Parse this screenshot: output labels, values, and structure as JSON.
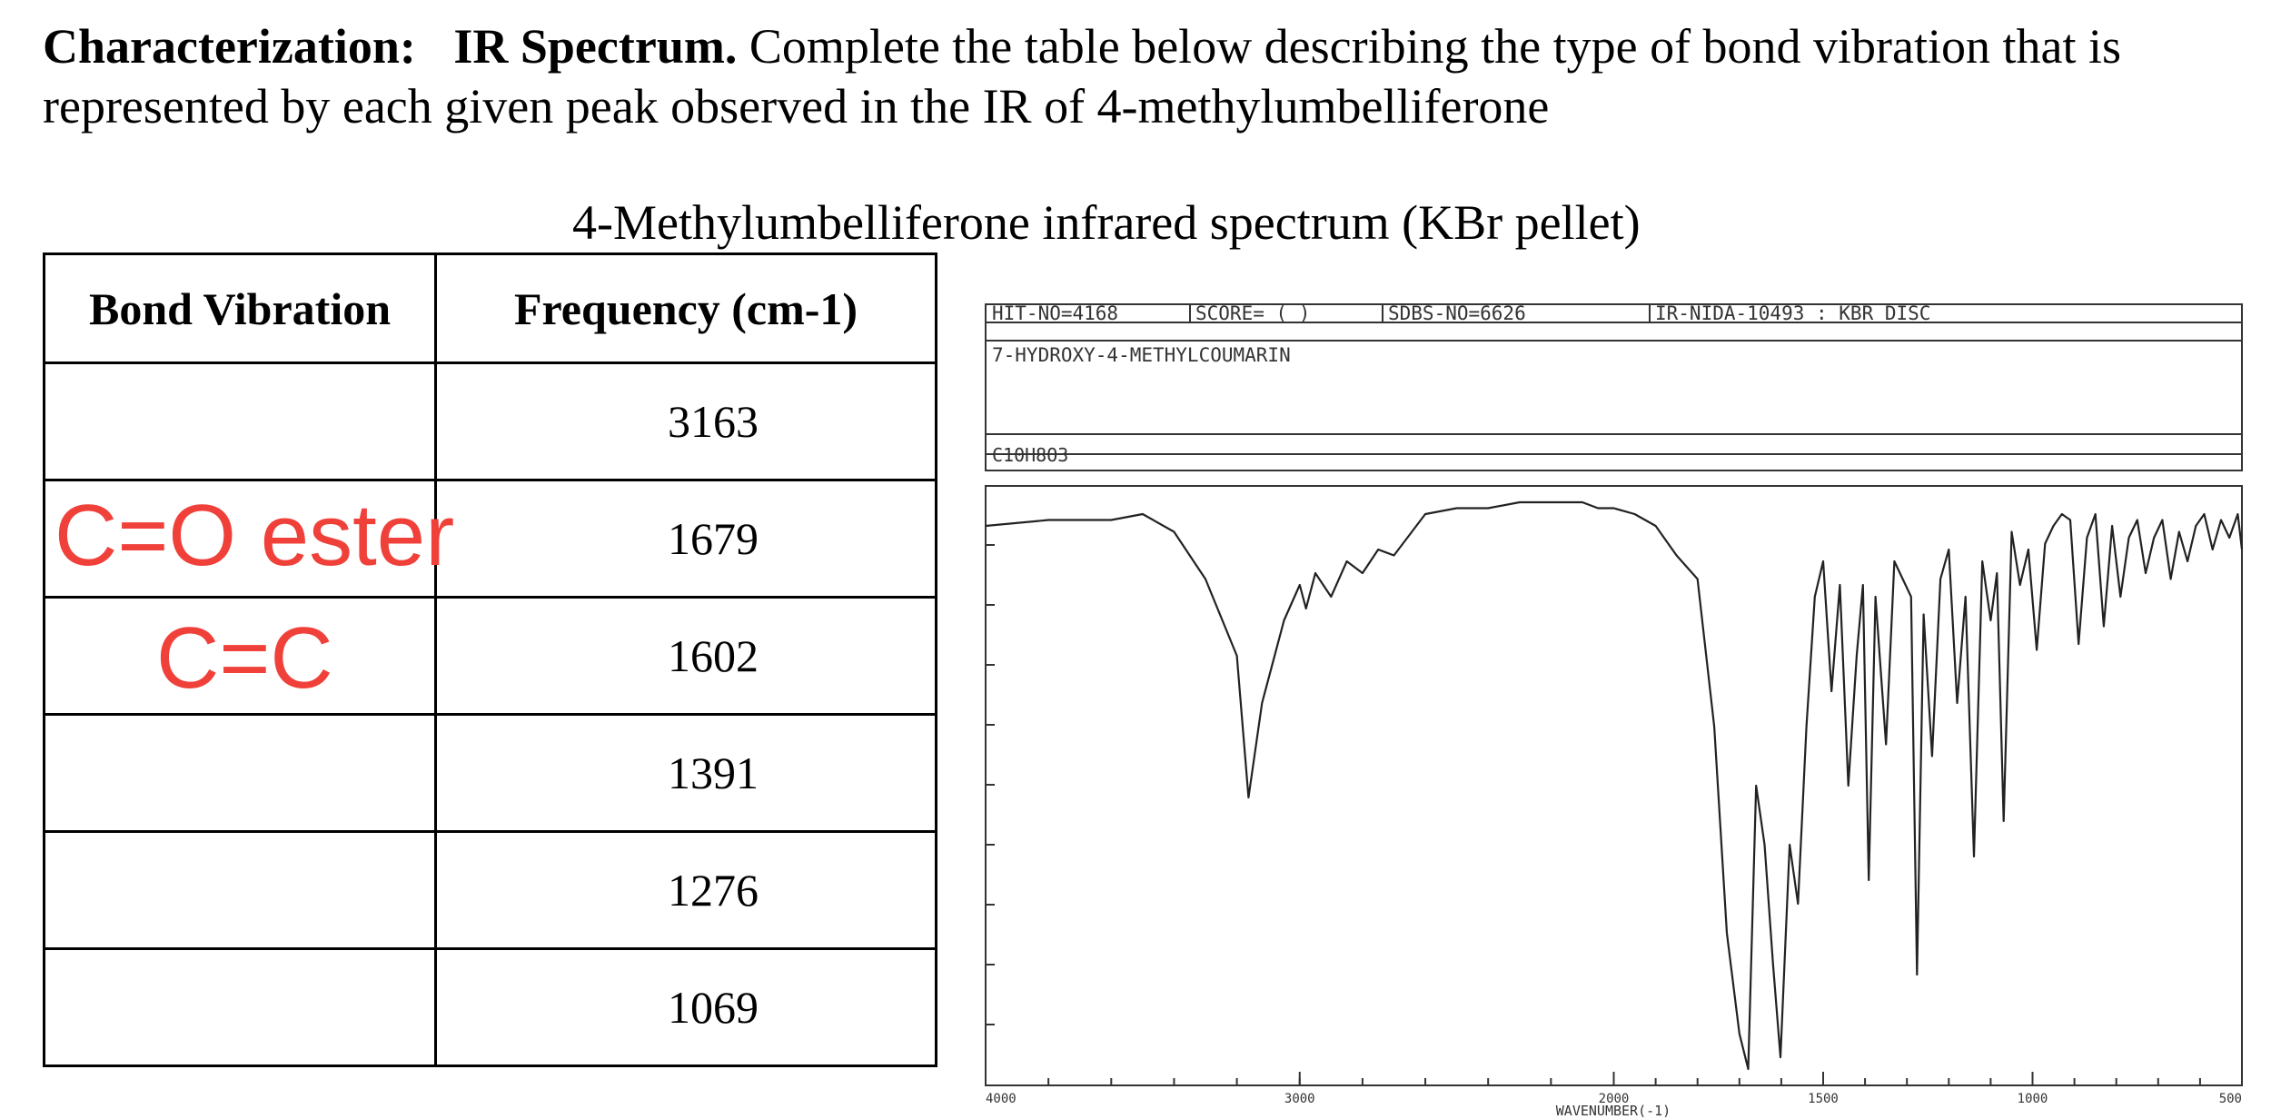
{
  "intro": {
    "label_characterization": "Characterization:",
    "label_ir": "IR Spectrum.",
    "text": "Complete the table below describing the type of bond vibration that is represented  by each given peak observed in the IR of 4-methylumbelliferone"
  },
  "spectrum_caption": "4-Methylumbelliferone infrared spectrum (KBr pellet)",
  "table": {
    "headers": [
      "Bond Vibration",
      "Frequency (cm-1)"
    ],
    "rows": [
      {
        "bond": "",
        "frequency": "3163"
      },
      {
        "bond": "",
        "frequency": "1679"
      },
      {
        "bond": "",
        "frequency": "1602"
      },
      {
        "bond": "",
        "frequency": "1391"
      },
      {
        "bond": "",
        "frequency": "1276"
      },
      {
        "bond": "",
        "frequency": "1069"
      }
    ]
  },
  "annotations": {
    "row2": "C=O ester",
    "row3": "C=C",
    "color": "#f0403a"
  },
  "spectrum": {
    "hit_no": "HIT-NO=4168",
    "score": "SCORE=  (   )",
    "sdbs_no": "SDBS-NO=6626",
    "ir_nida": "IR-NIDA-10493 : KBR DISC",
    "compound": "7-HYDROXY-4-METHYLCOUMARIN",
    "formula": "C10H8O3",
    "x_ticks": [
      "4000",
      "3000",
      "2000",
      "1500",
      "1000",
      "500"
    ],
    "x_label": "WAVENUMBER(-1)"
  },
  "chart_data": {
    "type": "line",
    "title": "",
    "xlabel": "WAVENUMBER(-1)",
    "ylabel": "",
    "x_scale": "reversed, two-segment (4000-2000 and 2000-500 each span half the axis)",
    "xlim": [
      4000,
      500
    ],
    "ylim": [
      0,
      100
    ],
    "series": [
      {
        "x": [
          4000,
          3800,
          3600,
          3500,
          3400,
          3300,
          3200,
          3163,
          3120,
          3050,
          3000,
          2980,
          2950,
          2900,
          2850,
          2800,
          2750,
          2700,
          2600,
          2500,
          2400,
          2300,
          2200,
          2100,
          2050,
          2000,
          1950,
          1900,
          1850,
          1800,
          1760,
          1730,
          1700,
          1679,
          1660,
          1640,
          1620,
          1602,
          1580,
          1560,
          1540,
          1520,
          1500,
          1480,
          1460,
          1440,
          1420,
          1405,
          1391,
          1375,
          1350,
          1330,
          1310,
          1290,
          1276,
          1260,
          1240,
          1220,
          1200,
          1180,
          1160,
          1140,
          1120,
          1100,
          1085,
          1069,
          1050,
          1030,
          1010,
          990,
          970,
          950,
          930,
          910,
          890,
          870,
          850,
          830,
          810,
          790,
          770,
          750,
          730,
          710,
          690,
          670,
          650,
          630,
          610,
          590,
          570,
          550,
          530,
          510,
          500
        ],
        "y": [
          94,
          95,
          95,
          96,
          93,
          85,
          72,
          48,
          64,
          78,
          84,
          80,
          86,
          82,
          88,
          86,
          90,
          89,
          96,
          97,
          97,
          98,
          98,
          98,
          97,
          97,
          96,
          94,
          89,
          85,
          60,
          25,
          8,
          2,
          50,
          40,
          20,
          4,
          40,
          30,
          60,
          82,
          88,
          66,
          84,
          50,
          72,
          84,
          34,
          82,
          57,
          88,
          85,
          82,
          18,
          79,
          55,
          85,
          90,
          64,
          82,
          38,
          88,
          78,
          86,
          44,
          93,
          84,
          90,
          73,
          91,
          94,
          96,
          95,
          74,
          92,
          96,
          77,
          94,
          82,
          92,
          95,
          86,
          92,
          95,
          85,
          93,
          88,
          94,
          96,
          90,
          95,
          92,
          96,
          90
        ]
      }
    ]
  }
}
